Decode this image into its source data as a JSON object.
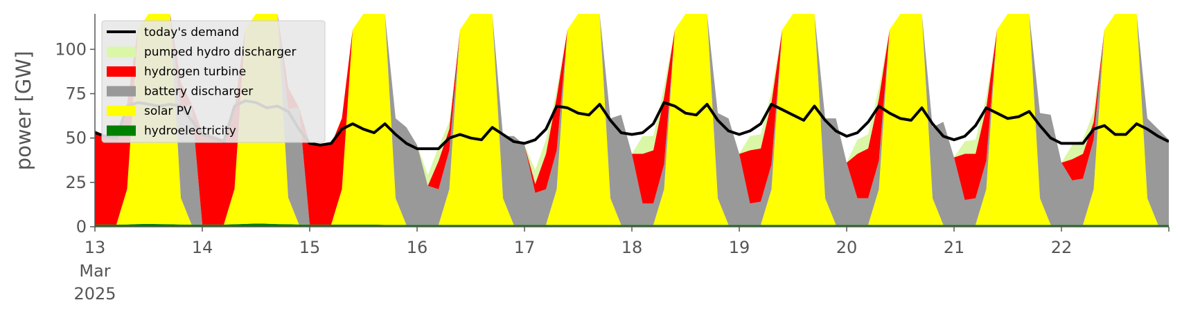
{
  "chart_data": {
    "type": "area",
    "ylabel": "power [GW]",
    "ylim": [
      0,
      120
    ],
    "y_ticks": [
      0,
      25,
      50,
      75,
      100
    ],
    "x_range_days": [
      13,
      23
    ],
    "x_ticks": [
      {
        "day": 13,
        "label": "13",
        "sublabels": [
          "Mar",
          "2025"
        ]
      },
      {
        "day": 14,
        "label": "14"
      },
      {
        "day": 15,
        "label": "15"
      },
      {
        "day": 16,
        "label": "16"
      },
      {
        "day": 17,
        "label": "17"
      },
      {
        "day": 18,
        "label": "18"
      },
      {
        "day": 19,
        "label": "19"
      },
      {
        "day": 20,
        "label": "20"
      },
      {
        "day": 21,
        "label": "21"
      },
      {
        "day": 22,
        "label": "22"
      }
    ],
    "grid": false,
    "legend_position": "top-left",
    "stack_order": [
      "hydroelectricity",
      "solar PV",
      "battery discharger",
      "hydrogen turbine",
      "pumped hydro discharger"
    ],
    "series": [
      {
        "name": "hydroelectricity",
        "color": "#008000",
        "values": [
          1.2,
          1.3,
          1.2,
          1.3,
          1.5,
          1.6,
          1.5,
          1.4,
          1.3,
          1.2,
          1.2,
          1.3,
          1.2,
          1.4,
          1.6,
          1.8,
          1.7,
          1.5,
          1.4,
          1.3,
          1.2,
          1.2,
          1.2,
          1.2,
          1.2,
          1.2,
          1.2,
          1.1,
          1.1,
          1.1,
          1.1,
          1.1,
          1.1,
          1.1,
          1.1,
          1.1,
          1.1,
          1.1,
          1.1,
          1.1,
          1.1,
          1.1,
          1.1,
          1.1,
          1.1,
          1.1,
          1.1,
          1.1,
          1.1,
          1.1,
          1.1,
          1.1,
          1.1,
          1.1,
          1.1,
          1.1,
          1.1,
          1.1,
          1.1,
          1.1,
          1.1,
          1.1,
          1.1,
          1.1,
          1.1,
          1.1,
          1.1,
          1.1,
          1.1,
          1.1,
          1.1,
          1.1,
          1.1,
          1.1,
          1.1,
          1.1,
          1.1,
          1.1,
          1.1,
          1.1,
          1.1,
          1.1,
          1.1,
          1.1,
          1.1,
          1.1,
          1.1,
          1.1,
          1.1,
          1.1,
          1.1,
          1.1,
          1.1,
          1.1,
          1.1,
          1.1,
          1.1,
          1.1,
          1.1,
          1.1,
          1.1
        ]
      },
      {
        "name": "solar PV",
        "color": "#ffff00",
        "values": [
          0,
          0,
          0,
          20,
          110,
          125,
          125,
          125,
          15,
          0,
          0,
          0,
          0,
          20,
          110,
          125,
          125,
          125,
          15,
          0,
          0,
          0,
          0,
          20,
          110,
          125,
          125,
          125,
          15,
          0,
          0,
          0,
          0,
          20,
          110,
          125,
          125,
          125,
          15,
          0,
          0,
          0,
          0,
          20,
          110,
          125,
          125,
          125,
          15,
          0,
          0,
          0,
          0,
          20,
          110,
          125,
          125,
          125,
          15,
          0,
          0,
          0,
          0,
          20,
          110,
          125,
          125,
          125,
          15,
          0,
          0,
          0,
          0,
          20,
          110,
          125,
          125,
          125,
          15,
          0,
          0,
          0,
          0,
          20,
          110,
          125,
          125,
          125,
          15,
          0,
          0,
          0,
          0,
          20,
          110,
          125,
          125,
          125,
          15,
          0,
          0
        ]
      },
      {
        "name": "battery discharger",
        "color": "#999999",
        "values": [
          0,
          0,
          0,
          0,
          0,
          0,
          0,
          0,
          50,
          68,
          0,
          0,
          0,
          0,
          0,
          0,
          0,
          0,
          50,
          66,
          0,
          0,
          0,
          0,
          0,
          0,
          0,
          0,
          45,
          55,
          45,
          22,
          20,
          22,
          0,
          0,
          0,
          0,
          35,
          50,
          45,
          18,
          20,
          22,
          0,
          0,
          0,
          0,
          45,
          62,
          40,
          12,
          12,
          14,
          0,
          0,
          0,
          0,
          48,
          60,
          40,
          12,
          13,
          14,
          0,
          0,
          0,
          0,
          45,
          60,
          35,
          15,
          15,
          16,
          0,
          0,
          0,
          0,
          40,
          58,
          38,
          14,
          15,
          16,
          0,
          0,
          0,
          0,
          48,
          62,
          35,
          25,
          26,
          28,
          0,
          0,
          0,
          0,
          45,
          54,
          48
        ]
      },
      {
        "name": "hydrogen turbine",
        "color": "#ff0000",
        "values": [
          53,
          50,
          50,
          48,
          0,
          0,
          0,
          0,
          15,
          0,
          52,
          50,
          48,
          45,
          0,
          0,
          0,
          0,
          12,
          0,
          46,
          45,
          45,
          40,
          0,
          0,
          0,
          0,
          0,
          0,
          0,
          0,
          16,
          12,
          0,
          0,
          0,
          0,
          0,
          0,
          0,
          5,
          20,
          30,
          0,
          0,
          0,
          0,
          0,
          0,
          0,
          28,
          30,
          38,
          0,
          0,
          0,
          0,
          0,
          0,
          0,
          30,
          30,
          35,
          0,
          0,
          0,
          0,
          0,
          0,
          0,
          25,
          28,
          35,
          0,
          0,
          0,
          0,
          0,
          0,
          0,
          26,
          25,
          30,
          0,
          0,
          0,
          0,
          0,
          0,
          0,
          12,
          14,
          10,
          0,
          0,
          0,
          0,
          0,
          0,
          0
        ]
      },
      {
        "name": "pumped hydro discharger",
        "color": "#d9f7a6",
        "values": [
          0,
          0,
          0,
          0,
          0,
          0,
          0,
          0,
          0,
          0,
          0,
          0,
          0,
          0,
          0,
          0,
          0,
          0,
          0,
          0,
          0,
          0,
          0,
          0,
          0,
          0,
          0,
          0,
          0,
          0,
          0,
          6,
          8,
          4,
          0,
          0,
          0,
          0,
          0,
          0,
          0,
          8,
          8,
          4,
          0,
          0,
          0,
          0,
          0,
          0,
          0,
          10,
          8,
          6,
          0,
          0,
          0,
          0,
          0,
          0,
          0,
          8,
          8,
          6,
          0,
          0,
          0,
          0,
          0,
          0,
          0,
          8,
          8,
          6,
          0,
          0,
          0,
          0,
          0,
          0,
          0,
          7,
          8,
          6,
          0,
          0,
          0,
          0,
          0,
          0,
          0,
          8,
          8,
          6,
          0,
          0,
          0,
          0,
          0,
          0,
          0
        ]
      },
      {
        "name": "today's demand",
        "color": "#000000",
        "line": true,
        "values": [
          53,
          51,
          50,
          68,
          70,
          69,
          68,
          69,
          68,
          60,
          52,
          50,
          48,
          68,
          71,
          70,
          67,
          68,
          65,
          55,
          47,
          46,
          47,
          55,
          58,
          55,
          53,
          58,
          52,
          47,
          44,
          44,
          44,
          50,
          52,
          50,
          49,
          56,
          52,
          48,
          47,
          49,
          55,
          68,
          67,
          64,
          63,
          69,
          60,
          53,
          52,
          53,
          58,
          70,
          68,
          64,
          63,
          69,
          60,
          54,
          52,
          54,
          58,
          69,
          66,
          63,
          60,
          68,
          60,
          54,
          51,
          53,
          59,
          68,
          64,
          61,
          60,
          67,
          58,
          51,
          49,
          51,
          57,
          67,
          64,
          61,
          62,
          65,
          57,
          50,
          47,
          47,
          47,
          55,
          57,
          52,
          52,
          58,
          55,
          51,
          48
        ]
      }
    ]
  }
}
